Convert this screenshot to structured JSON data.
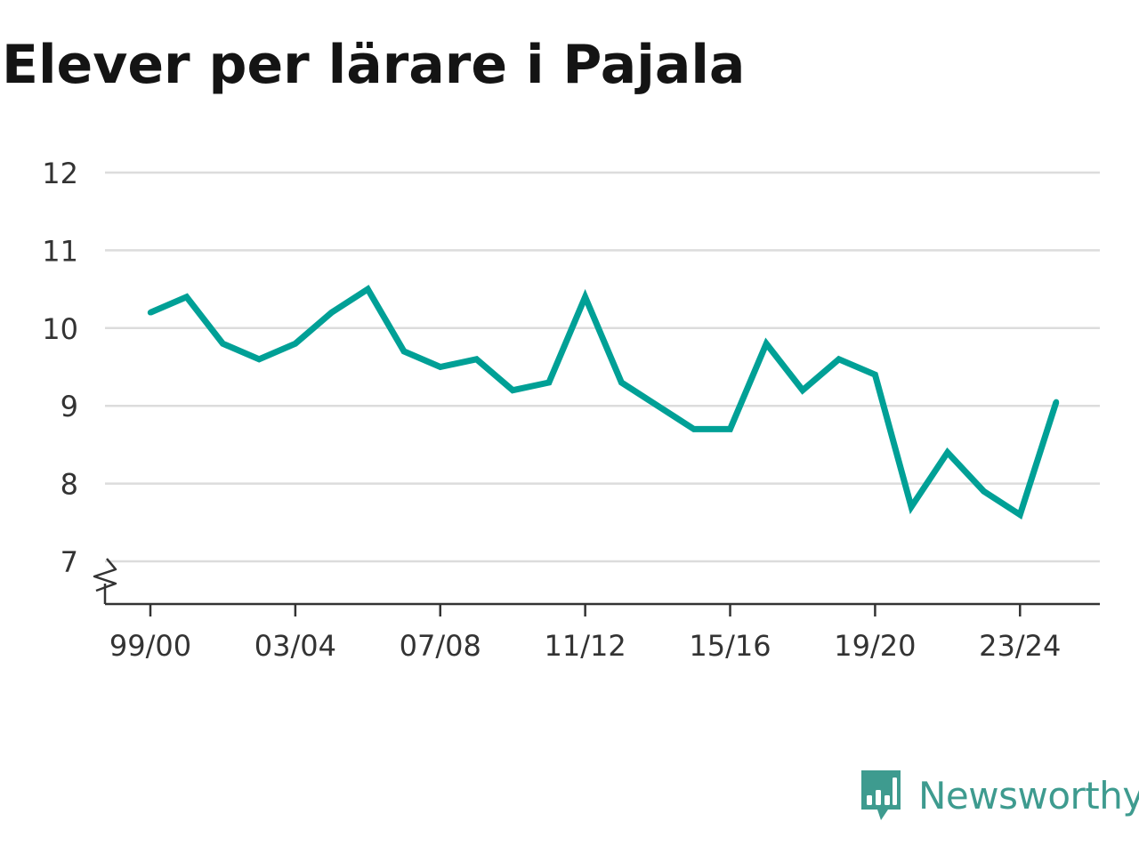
{
  "brand": {
    "name": "Newsworthy",
    "color": "#3e9b8f",
    "logo_icon": "chart-bubble-icon"
  },
  "chart_data": {
    "type": "line",
    "title": "Elever per lärare i Pajala",
    "xlabel": "",
    "ylabel": "",
    "x_tick_labels": [
      "99/00",
      "03/04",
      "07/08",
      "11/12",
      "15/16",
      "19/20",
      "23/24"
    ],
    "y_ticks": [
      7,
      8,
      9,
      10,
      11,
      12
    ],
    "ylim": [
      6.45,
      12
    ],
    "y_axis_break": true,
    "grid": true,
    "line_color": "#00a096",
    "series": [
      {
        "x": [
          "99/00",
          "00/01",
          "01/02",
          "02/03",
          "03/04",
          "04/05",
          "05/06",
          "06/07",
          "07/08",
          "08/09",
          "09/10",
          "10/11",
          "11/12",
          "12/13",
          "13/14",
          "14/15",
          "15/16",
          "16/17",
          "17/18",
          "18/19",
          "19/20",
          "20/21",
          "21/22",
          "22/23",
          "23/24",
          "24/25"
        ],
        "values": [
          10.2,
          10.4,
          9.8,
          9.6,
          9.8,
          10.2,
          10.5,
          9.7,
          9.5,
          9.6,
          9.2,
          9.3,
          10.4,
          9.3,
          9.0,
          8.7,
          8.7,
          9.8,
          9.2,
          9.6,
          9.4,
          7.7,
          8.4,
          7.9,
          7.6,
          9.05
        ]
      }
    ]
  }
}
